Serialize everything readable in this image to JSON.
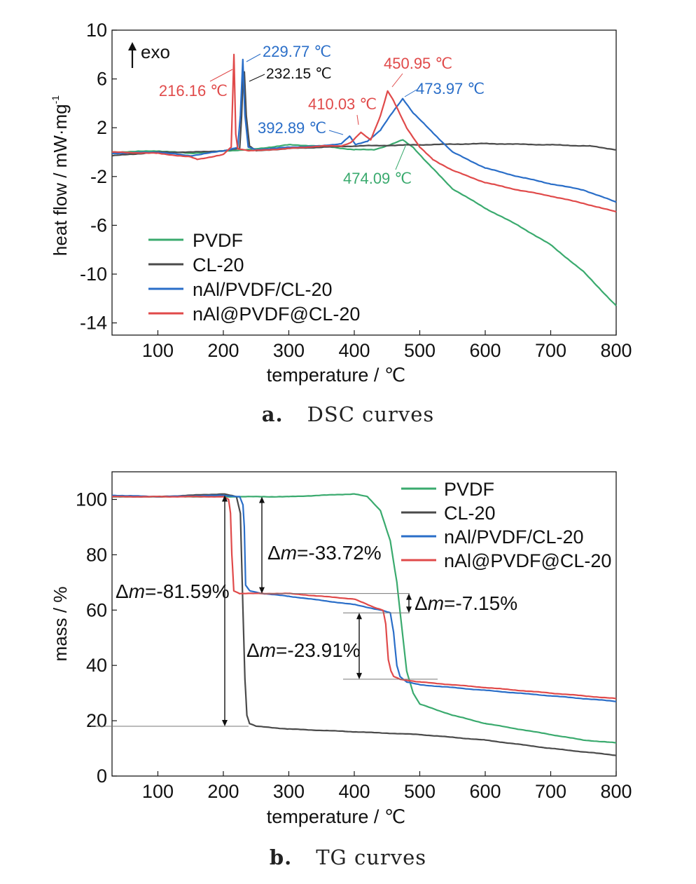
{
  "captions": {
    "a": {
      "letter": "a.",
      "text": "DSC curves"
    },
    "b": {
      "letter": "b.",
      "text": "TG curves"
    }
  },
  "colors": {
    "PVDF": "#3aaa6e",
    "CL-20": "#4a4a4a",
    "nAl/PVDF/CL-20": "#2a6ec8",
    "nAl@PVDF@CL-20": "#e04a4a"
  },
  "chart_data": [
    {
      "type": "line",
      "xlabel": "temperature / ℃",
      "ylabel": "heat flow / mW·mg",
      "ylabel_sup": "-1",
      "xlim": [
        30,
        800
      ],
      "ylim": [
        -15,
        10
      ],
      "xticks": [
        100,
        200,
        300,
        400,
        500,
        600,
        700,
        800
      ],
      "yticks": [
        10,
        6,
        2,
        -2,
        -6,
        -10,
        -14
      ],
      "legend_position": "bottom-left",
      "exo_label": "exo",
      "series": [
        {
          "name": "PVDF",
          "x": [
            30,
            100,
            150,
            200,
            240,
            300,
            350,
            400,
            430,
            455,
            474.09,
            490,
            510,
            550,
            600,
            650,
            700,
            750,
            800
          ],
          "y": [
            0.0,
            0.1,
            -0.1,
            0.1,
            0.2,
            0.6,
            0.5,
            0.2,
            0.2,
            0.6,
            1.0,
            0.4,
            -0.8,
            -3.0,
            -4.6,
            -6.0,
            -7.6,
            -9.8,
            -12.6
          ]
        },
        {
          "name": "CL-20",
          "x": [
            30,
            100,
            150,
            200,
            225,
            228,
            230,
            232.15,
            235,
            240,
            250,
            300,
            400,
            500,
            600,
            700,
            760,
            800
          ],
          "y": [
            -0.3,
            0.0,
            0.0,
            0.1,
            0.3,
            3.0,
            6.0,
            6.6,
            3.0,
            0.5,
            0.1,
            0.3,
            0.5,
            0.6,
            0.7,
            0.6,
            0.5,
            0.2
          ]
        },
        {
          "name": "nAl/PVDF/CL-20",
          "x": [
            30,
            100,
            150,
            200,
            222,
            226,
            229.77,
            233,
            238,
            250,
            300,
            350,
            380,
            392.89,
            402,
            420,
            440,
            455,
            473.97,
            490,
            520,
            550,
            600,
            650,
            700,
            750,
            800
          ],
          "y": [
            -0.1,
            0.0,
            -0.3,
            0.1,
            0.4,
            3.0,
            7.6,
            3.0,
            0.4,
            0.2,
            0.4,
            0.5,
            0.7,
            1.3,
            0.6,
            0.9,
            1.8,
            3.0,
            4.4,
            3.2,
            1.6,
            0.0,
            -1.3,
            -2.0,
            -2.6,
            -3.1,
            -4.1
          ]
        },
        {
          "name": "nAl@PVDF@CL-20",
          "x": [
            30,
            100,
            150,
            160,
            200,
            212,
            216.16,
            219,
            222,
            240,
            300,
            350,
            380,
            395,
            410.03,
            425,
            440,
            450.95,
            460,
            480,
            500,
            520,
            550,
            600,
            650,
            700,
            750,
            800
          ],
          "y": [
            0.0,
            -0.1,
            -0.4,
            -0.6,
            -0.2,
            0.4,
            8.0,
            1.5,
            0.3,
            0.1,
            0.3,
            0.5,
            0.5,
            0.8,
            1.6,
            1.0,
            3.0,
            5.0,
            4.2,
            2.0,
            0.4,
            -0.6,
            -1.5,
            -2.5,
            -3.1,
            -3.6,
            -4.2,
            -4.9
          ]
        }
      ],
      "annotations": [
        {
          "text": "229.77 ℃",
          "series": "nAl/PVDF/CL-20"
        },
        {
          "text": "232.15 ℃",
          "series": "CL-20"
        },
        {
          "text": "216.16 ℃",
          "series": "nAl@PVDF@CL-20"
        },
        {
          "text": "450.95 ℃",
          "series": "nAl@PVDF@CL-20"
        },
        {
          "text": "410.03 ℃",
          "series": "nAl@PVDF@CL-20"
        },
        {
          "text": "473.97 ℃",
          "series": "nAl/PVDF/CL-20"
        },
        {
          "text": "392.89 ℃",
          "series": "nAl/PVDF/CL-20"
        },
        {
          "text": "474.09 ℃",
          "series": "PVDF"
        }
      ]
    },
    {
      "type": "line",
      "xlabel": "temperature / ℃",
      "ylabel": "mass / %",
      "xlim": [
        30,
        800
      ],
      "ylim": [
        0,
        110
      ],
      "xticks": [
        100,
        200,
        300,
        400,
        500,
        600,
        700,
        800
      ],
      "yticks": [
        0,
        20,
        40,
        60,
        80,
        100
      ],
      "legend_position": "top-right",
      "series": [
        {
          "name": "PVDF",
          "x": [
            30,
            100,
            200,
            300,
            400,
            420,
            440,
            455,
            465,
            472,
            480,
            490,
            500,
            550,
            600,
            650,
            700,
            750,
            800
          ],
          "y": [
            101,
            101,
            101,
            101,
            102,
            101,
            96,
            85,
            70,
            55,
            38,
            30,
            26,
            22,
            19,
            17,
            15,
            13,
            12
          ]
        },
        {
          "name": "CL-20",
          "x": [
            30,
            100,
            200,
            220,
            226,
            230,
            233,
            236,
            240,
            250,
            300,
            400,
            500,
            600,
            700,
            800
          ],
          "y": [
            101,
            101,
            102,
            101,
            95,
            60,
            35,
            22,
            19,
            18,
            17,
            16,
            15,
            13,
            10,
            7.5
          ]
        },
        {
          "name": "nAl/PVDF/CL-20",
          "x": [
            30,
            100,
            200,
            225,
            230,
            232,
            234,
            240,
            260,
            300,
            400,
            440,
            455,
            460,
            465,
            470,
            480,
            500,
            600,
            700,
            800
          ],
          "y": [
            101.5,
            101,
            101.5,
            101,
            98,
            90,
            69,
            67,
            66,
            65,
            62,
            60,
            59,
            52,
            40,
            36,
            34,
            33,
            31,
            29,
            27
          ]
        },
        {
          "name": "nAl@PVDF@CL-20",
          "x": [
            30,
            100,
            200,
            208,
            211,
            213,
            216,
            225,
            260,
            300,
            400,
            430,
            444,
            448,
            452,
            456,
            460,
            470,
            500,
            600,
            700,
            800
          ],
          "y": [
            101,
            101,
            101,
            100,
            95,
            80,
            67,
            66,
            66,
            66,
            64,
            61,
            60,
            55,
            42,
            38,
            36,
            35,
            34,
            32,
            30,
            28
          ]
        }
      ],
      "annotations": [
        {
          "text": "Δm=-81.59%",
          "range": [
            101.5,
            18
          ]
        },
        {
          "text": "Δm=-33.72%",
          "range": [
            101,
            66
          ]
        },
        {
          "text": "Δm=-7.15%",
          "range": [
            66,
            59
          ]
        },
        {
          "text": "Δm=-23.91%",
          "range": [
            59,
            35
          ]
        }
      ]
    }
  ]
}
